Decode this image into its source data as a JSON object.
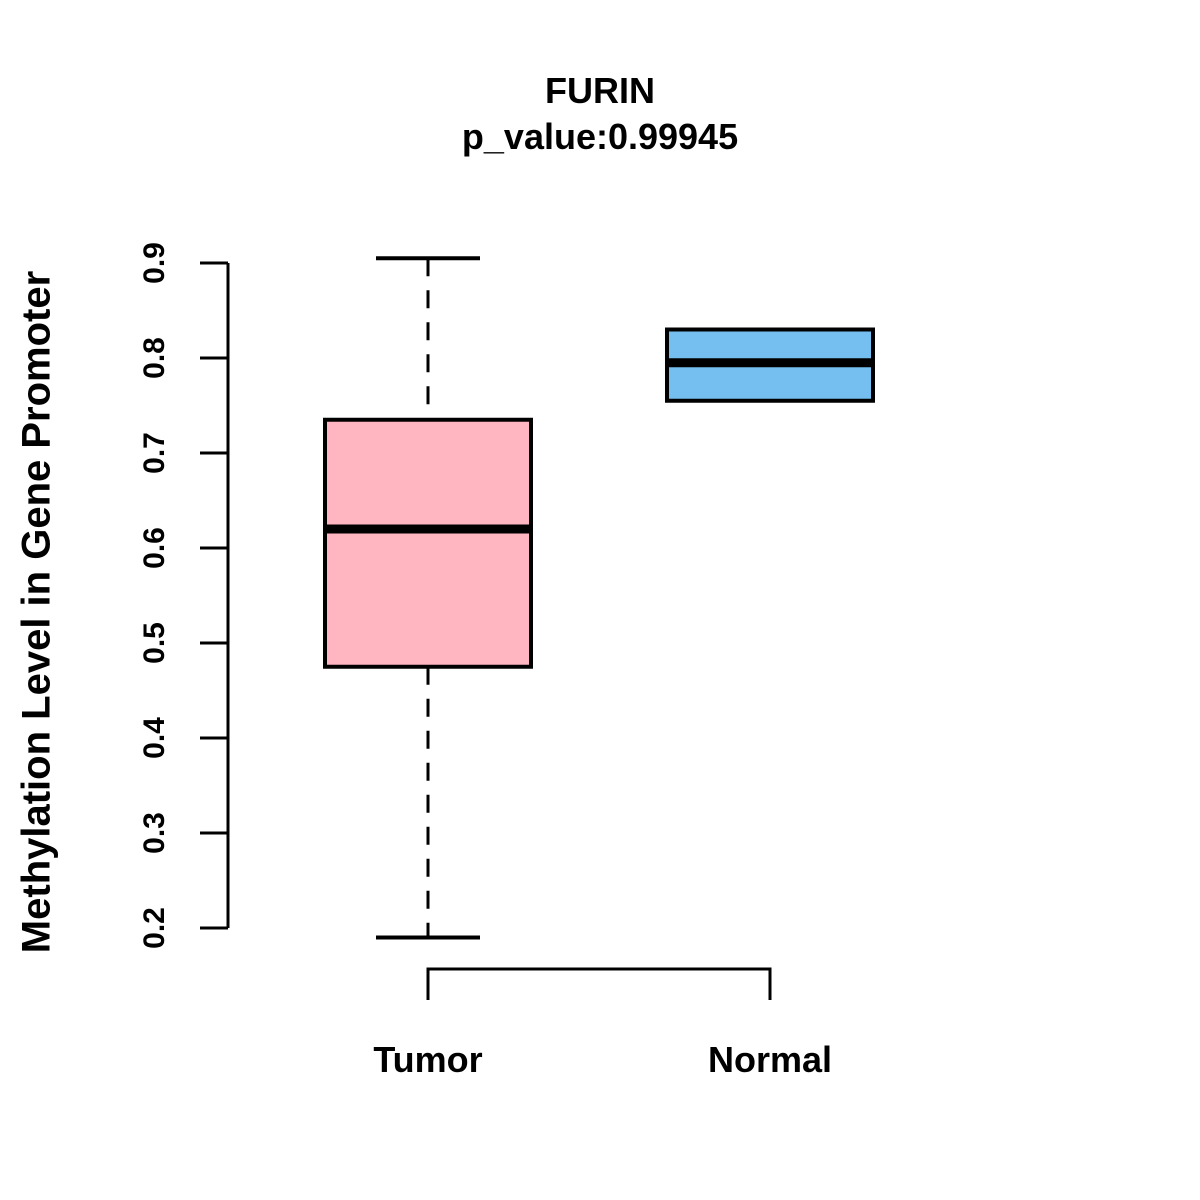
{
  "chart_data": {
    "type": "boxplot",
    "title": "FURIN",
    "subtitle": "p_value:0.99945",
    "ylabel": "Methylation Level in Gene Promoter",
    "xlabel": "",
    "categories": [
      "Tumor",
      "Normal"
    ],
    "yticks": [
      0.2,
      0.3,
      0.4,
      0.5,
      0.6,
      0.7,
      0.8,
      0.9
    ],
    "ylim": [
      0.185,
      0.91
    ],
    "grid": false,
    "legend": "none",
    "whisker_style": "dashed",
    "series": [
      {
        "name": "Tumor",
        "fill": "#FFB6C1",
        "whisker_low": 0.19,
        "q1": 0.475,
        "median": 0.62,
        "q3": 0.735,
        "whisker_high": 0.905
      },
      {
        "name": "Normal",
        "fill": "#75BFF0",
        "whisker_low": 0.755,
        "q1": 0.755,
        "median": 0.795,
        "q3": 0.83,
        "whisker_high": 0.83
      }
    ],
    "colors": {
      "stroke": "#000000",
      "background": "#FFFFFF",
      "tumor_fill": "#FFB6C1",
      "normal_fill": "#75BFF0"
    }
  }
}
